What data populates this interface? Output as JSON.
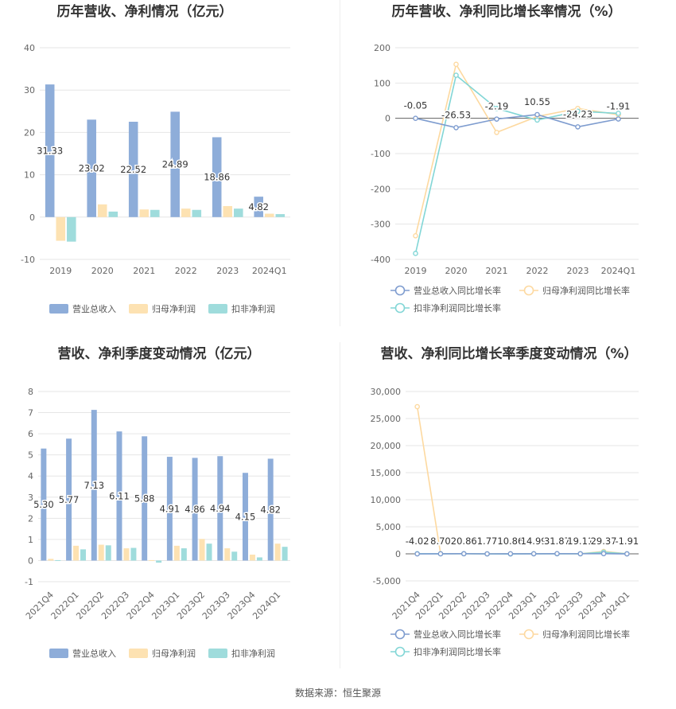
{
  "colors": {
    "revenue": "#8eadd9",
    "netprofit": "#fde2b2",
    "deducted": "#9fdcdc",
    "revenue_line": "#7e9ccf",
    "netprofit_line": "#fdd9a0",
    "deducted_line": "#82d6d6",
    "grid": "#e6e6e6"
  },
  "source": "数据来源：恒生聚源",
  "chart_data": [
    {
      "id": "annual-amount",
      "type": "bar",
      "title": "历年营收、净利情况（亿元）",
      "categories": [
        "2019",
        "2020",
        "2021",
        "2022",
        "2023",
        "2024Q1"
      ],
      "ylim": [
        -10,
        40
      ],
      "yticks": [
        -10,
        0,
        10,
        20,
        30,
        40
      ],
      "series": [
        {
          "name": "营业总收入",
          "values": [
            31.33,
            23.02,
            22.52,
            24.89,
            18.86,
            4.82
          ],
          "labels": [
            "31.33",
            "23.02",
            "22.52",
            "24.89",
            "18.86",
            "4.82"
          ]
        },
        {
          "name": "归母净利润",
          "values": [
            -5.6,
            3.0,
            1.8,
            2.0,
            2.6,
            0.8
          ]
        },
        {
          "name": "扣非净利润",
          "values": [
            -5.8,
            1.3,
            1.7,
            1.7,
            2.0,
            0.7
          ]
        }
      ],
      "legend": "bottom"
    },
    {
      "id": "annual-growth",
      "type": "line",
      "title": "历年营收、净利同比增长率情况（%）",
      "categories": [
        "2019",
        "2020",
        "2021",
        "2022",
        "2023",
        "2024Q1"
      ],
      "ylim": [
        -400,
        200
      ],
      "yticks": [
        -400,
        -300,
        -200,
        -100,
        0,
        100,
        200
      ],
      "series": [
        {
          "name": "营业总收入同比增长率",
          "values": [
            -0.05,
            -26.53,
            -2.19,
            10.55,
            -24.23,
            -1.91
          ],
          "labels": [
            "-0.05",
            "-26.53",
            "-2.19",
            "10.55",
            "-24.23",
            "-1.91"
          ]
        },
        {
          "name": "归母净利润同比增长率",
          "values": [
            -333,
            153,
            -40,
            5,
            28,
            10
          ]
        },
        {
          "name": "扣非净利润同比增长率",
          "values": [
            -383,
            122,
            28,
            -5,
            20,
            14
          ]
        }
      ],
      "legend": "bottom"
    },
    {
      "id": "quarterly-amount",
      "type": "bar",
      "title": "营收、净利季度变动情况（亿元）",
      "categories": [
        "2021Q4",
        "2022Q1",
        "2022Q2",
        "2022Q3",
        "2022Q4",
        "2023Q1",
        "2023Q2",
        "2023Q3",
        "2023Q4",
        "2024Q1"
      ],
      "ylim": [
        -1,
        8
      ],
      "yticks": [
        -1,
        0,
        1,
        2,
        3,
        4,
        5,
        6,
        7,
        8
      ],
      "series": [
        {
          "name": "营业总收入",
          "values": [
            5.3,
            5.77,
            7.13,
            6.11,
            5.88,
            4.91,
            4.86,
            4.94,
            4.15,
            4.82
          ],
          "labels": [
            "5.30",
            "5.77",
            "7.13",
            "6.11",
            "5.88",
            "4.91",
            "4.86",
            "4.94",
            "4.15",
            "4.82"
          ]
        },
        {
          "name": "归母净利润",
          "values": [
            0.08,
            0.7,
            0.75,
            0.58,
            0.02,
            0.7,
            1.02,
            0.58,
            0.28,
            0.8
          ]
        },
        {
          "name": "扣非净利润",
          "values": [
            0.02,
            0.53,
            0.72,
            0.6,
            -0.1,
            0.58,
            0.8,
            0.42,
            0.15,
            0.65
          ]
        }
      ],
      "legend": "bottom"
    },
    {
      "id": "quarterly-growth",
      "type": "line",
      "title": "营收、净利同比增长率季度变动情况（%）",
      "categories": [
        "2021Q4",
        "2022Q1",
        "2022Q2",
        "2022Q3",
        "2022Q4",
        "2023Q1",
        "2023Q2",
        "2023Q3",
        "2023Q4",
        "2024Q1"
      ],
      "ylim": [
        -5000,
        30000
      ],
      "yticks": [
        -5000,
        0,
        5000,
        10000,
        15000,
        20000,
        25000,
        30000
      ],
      "ytick_labels": [
        "-5,000",
        "0",
        "5,000",
        "10,000",
        "15,000",
        "20,000",
        "25,000",
        "30,000"
      ],
      "series": [
        {
          "name": "营业总收入同比增长率",
          "values": [
            -4.02,
            8.7,
            20.86,
            1.77,
            10.86,
            14.99,
            31.87,
            19.11,
            29.37,
            -1.91
          ],
          "labels": [
            "-4.02",
            "8.70",
            "20.86",
            "1.77",
            "10.86",
            "14.99",
            "31.87",
            "19.11",
            "29.37",
            "-1.91"
          ]
        },
        {
          "name": "归母净利润同比增长率",
          "values": [
            27200,
            30,
            20,
            -10,
            5,
            20,
            30,
            10,
            450,
            10
          ]
        },
        {
          "name": "扣非净利润同比增长率",
          "values": [
            30,
            10,
            20,
            -5,
            -30,
            10,
            5,
            15,
            300,
            15
          ]
        }
      ],
      "legend": "bottom"
    }
  ]
}
